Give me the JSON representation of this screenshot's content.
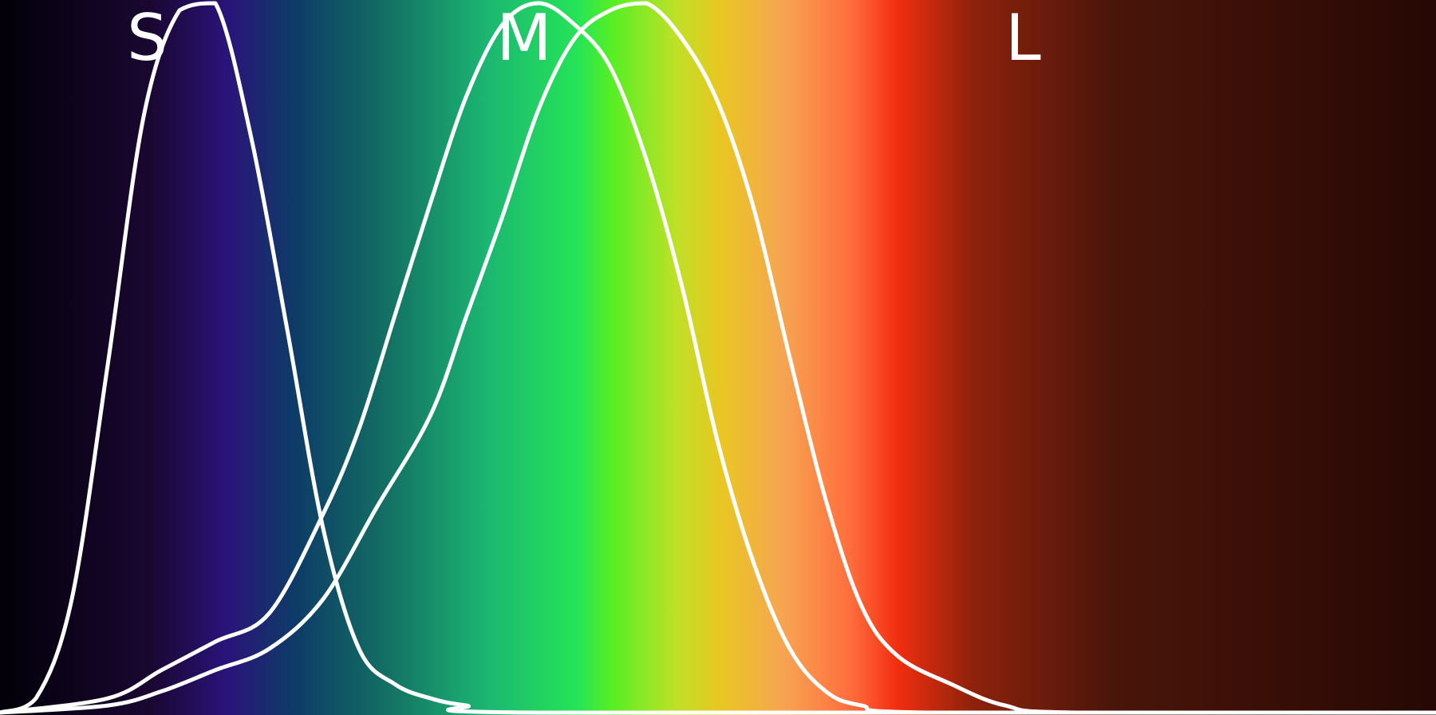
{
  "chart_data": {
    "type": "line",
    "xlim": [
      380,
      780
    ],
    "ylim": [
      0,
      1
    ],
    "grid": false,
    "background": {
      "type": "visible-spectrum",
      "stops": [
        {
          "wavelength": 380,
          "color": "#020008"
        },
        {
          "wavelength": 422,
          "color": "#1a0731"
        },
        {
          "wavelength": 443,
          "color": "#2a137a"
        },
        {
          "wavelength": 463,
          "color": "#0d3d66"
        },
        {
          "wavelength": 488,
          "color": "#137063"
        },
        {
          "wavelength": 516,
          "color": "#1cb772"
        },
        {
          "wavelength": 541,
          "color": "#25e456"
        },
        {
          "wavelength": 550,
          "color": "#54ef25"
        },
        {
          "wavelength": 568,
          "color": "#bde126"
        },
        {
          "wavelength": 581,
          "color": "#eac622"
        },
        {
          "wavelength": 598,
          "color": "#f6a552"
        },
        {
          "wavelength": 617,
          "color": "#ff6d3d"
        },
        {
          "wavelength": 630,
          "color": "#f12e10"
        },
        {
          "wavelength": 651,
          "color": "#8d220c"
        },
        {
          "wavelength": 690,
          "color": "#4a150a"
        },
        {
          "wavelength": 780,
          "color": "#260804"
        }
      ]
    },
    "series": [
      {
        "name": "S",
        "color": "#ffffff",
        "label": {
          "text": "S",
          "x": 421,
          "y": 0.92
        },
        "points": [
          [
            380,
            0.0
          ],
          [
            390,
            0.02
          ],
          [
            400,
            0.16
          ],
          [
            410,
            0.49
          ],
          [
            420,
            0.84
          ],
          [
            430,
            0.99
          ],
          [
            440,
            1.0
          ],
          [
            450,
            0.81
          ],
          [
            460,
            0.54
          ],
          [
            470,
            0.26
          ],
          [
            480,
            0.09
          ],
          [
            490,
            0.04
          ],
          [
            500,
            0.02
          ],
          [
            510,
            0.01
          ],
          [
            530,
            0.0
          ],
          [
            780,
            0.0
          ]
        ]
      },
      {
        "name": "M",
        "color": "#ffffff",
        "label": {
          "text": "M",
          "x": 526,
          "y": 0.92
        },
        "points": [
          [
            380,
            0.0
          ],
          [
            410,
            0.02
          ],
          [
            425,
            0.06
          ],
          [
            440,
            0.1
          ],
          [
            455,
            0.14
          ],
          [
            470,
            0.28
          ],
          [
            480,
            0.4
          ],
          [
            490,
            0.56
          ],
          [
            500,
            0.72
          ],
          [
            510,
            0.87
          ],
          [
            520,
            0.97
          ],
          [
            530,
            1.0
          ],
          [
            540,
            0.97
          ],
          [
            550,
            0.91
          ],
          [
            560,
            0.78
          ],
          [
            570,
            0.6
          ],
          [
            580,
            0.38
          ],
          [
            590,
            0.21
          ],
          [
            600,
            0.09
          ],
          [
            610,
            0.03
          ],
          [
            620,
            0.01
          ],
          [
            640,
            0.0
          ],
          [
            780,
            0.0
          ]
        ]
      },
      {
        "name": "L",
        "color": "#ffffff",
        "label": {
          "text": "L",
          "x": 665,
          "y": 0.92
        },
        "points": [
          [
            380,
            0.0
          ],
          [
            410,
            0.01
          ],
          [
            425,
            0.03
          ],
          [
            440,
            0.06
          ],
          [
            455,
            0.09
          ],
          [
            470,
            0.16
          ],
          [
            485,
            0.29
          ],
          [
            500,
            0.42
          ],
          [
            510,
            0.56
          ],
          [
            520,
            0.7
          ],
          [
            530,
            0.85
          ],
          [
            540,
            0.95
          ],
          [
            550,
            0.99
          ],
          [
            560,
            1.0
          ],
          [
            570,
            0.95
          ],
          [
            580,
            0.86
          ],
          [
            590,
            0.71
          ],
          [
            600,
            0.5
          ],
          [
            610,
            0.3
          ],
          [
            620,
            0.15
          ],
          [
            630,
            0.08
          ],
          [
            645,
            0.04
          ],
          [
            660,
            0.01
          ],
          [
            680,
            0.0
          ],
          [
            780,
            0.0
          ]
        ]
      }
    ]
  }
}
